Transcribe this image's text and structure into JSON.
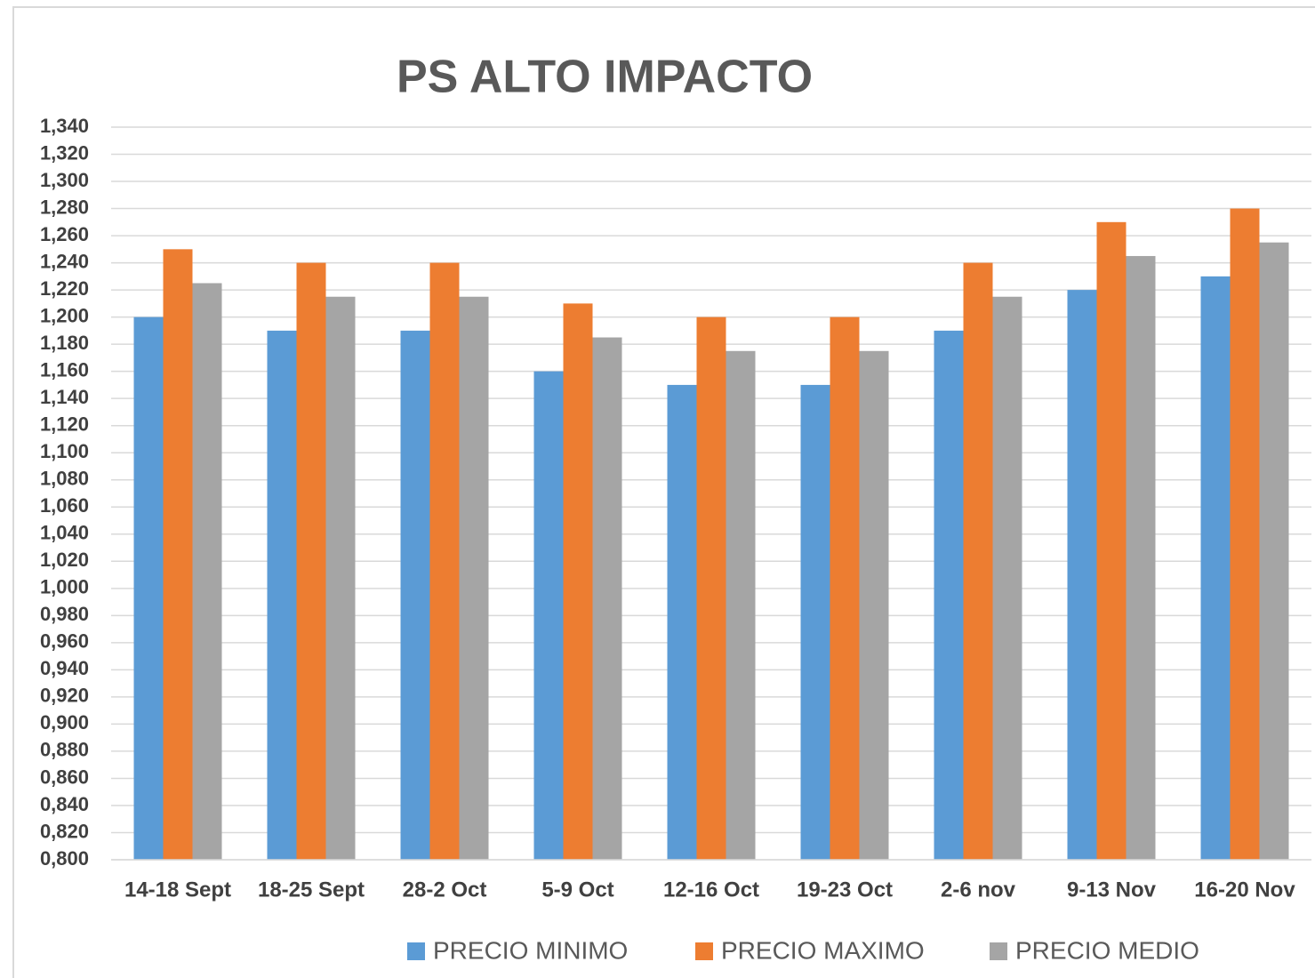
{
  "chart_data": {
    "type": "bar",
    "title": "PS ALTO IMPACTO",
    "categories": [
      "14-18 Sept",
      "18-25 Sept",
      "28-2 Oct",
      "5-9 Oct",
      "12-16 Oct",
      "19-23 Oct",
      "2-6 nov",
      "9-13 Nov",
      "16-20 Nov"
    ],
    "series": [
      {
        "name": "PRECIO MINIMO",
        "color": "#5b9bd5",
        "values": [
          1.2,
          1.19,
          1.19,
          1.16,
          1.15,
          1.15,
          1.19,
          1.22,
          1.23
        ]
      },
      {
        "name": "PRECIO MAXIMO",
        "color": "#ed7d31",
        "values": [
          1.25,
          1.24,
          1.24,
          1.21,
          1.2,
          1.2,
          1.24,
          1.27,
          1.28
        ]
      },
      {
        "name": "PRECIO MEDIO",
        "color": "#a5a5a5",
        "values": [
          1.225,
          1.215,
          1.215,
          1.185,
          1.175,
          1.175,
          1.215,
          1.245,
          1.255
        ]
      }
    ],
    "ylim": [
      0.8,
      1.34
    ],
    "yticks": [
      {
        "value": 0.8,
        "label": "0,800"
      },
      {
        "value": 0.82,
        "label": "0,820"
      },
      {
        "value": 0.84,
        "label": "0,840"
      },
      {
        "value": 0.86,
        "label": "0,860"
      },
      {
        "value": 0.88,
        "label": "0,880"
      },
      {
        "value": 0.9,
        "label": "0,900"
      },
      {
        "value": 0.92,
        "label": "0,920"
      },
      {
        "value": 0.94,
        "label": "0,940"
      },
      {
        "value": 0.96,
        "label": "0,960"
      },
      {
        "value": 0.98,
        "label": "0,980"
      },
      {
        "value": 1.0,
        "label": "1,000"
      },
      {
        "value": 1.02,
        "label": "1,020"
      },
      {
        "value": 1.04,
        "label": "1,040"
      },
      {
        "value": 1.06,
        "label": "1,060"
      },
      {
        "value": 1.08,
        "label": "1,080"
      },
      {
        "value": 1.1,
        "label": "1,100"
      },
      {
        "value": 1.12,
        "label": "1,120"
      },
      {
        "value": 1.14,
        "label": "1,140"
      },
      {
        "value": 1.16,
        "label": "1,160"
      },
      {
        "value": 1.18,
        "label": "1,180"
      },
      {
        "value": 1.2,
        "label": "1,200"
      },
      {
        "value": 1.22,
        "label": "1,220"
      },
      {
        "value": 1.24,
        "label": "1,240"
      },
      {
        "value": 1.26,
        "label": "1,260"
      },
      {
        "value": 1.28,
        "label": "1,280"
      },
      {
        "value": 1.3,
        "label": "1,300"
      },
      {
        "value": 1.32,
        "label": "1,320"
      },
      {
        "value": 1.34,
        "label": "1,340"
      }
    ],
    "grid": true,
    "legend": "bottom"
  }
}
